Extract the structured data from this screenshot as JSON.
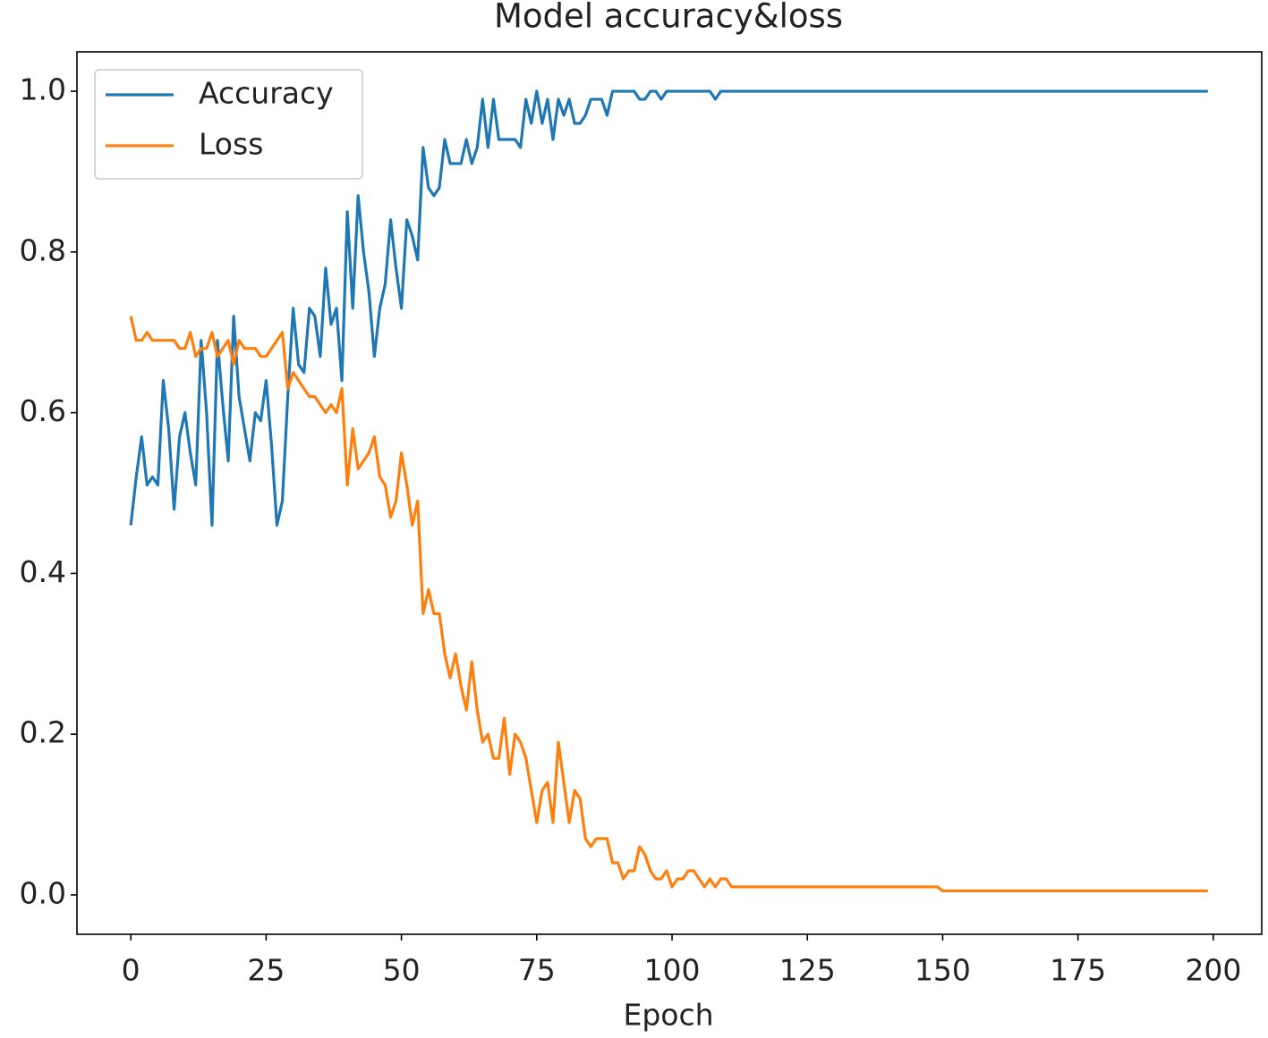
{
  "chart_data": {
    "type": "line",
    "title": "Model accuracy&loss",
    "xlabel": "Epoch",
    "x": [
      0,
      1,
      2,
      3,
      4,
      5,
      6,
      7,
      8,
      9,
      10,
      11,
      12,
      13,
      14,
      15,
      16,
      17,
      18,
      19,
      20,
      21,
      22,
      23,
      24,
      25,
      26,
      27,
      28,
      29,
      30,
      31,
      32,
      33,
      34,
      35,
      36,
      37,
      38,
      39,
      40,
      41,
      42,
      43,
      44,
      45,
      46,
      47,
      48,
      49,
      50,
      51,
      52,
      53,
      54,
      55,
      56,
      57,
      58,
      59,
      60,
      61,
      62,
      63,
      64,
      65,
      66,
      67,
      68,
      69,
      70,
      71,
      72,
      73,
      74,
      75,
      76,
      77,
      78,
      79,
      80,
      81,
      82,
      83,
      84,
      85,
      86,
      87,
      88,
      89,
      90,
      91,
      92,
      93,
      94,
      95,
      96,
      97,
      98,
      99,
      100,
      101,
      102,
      103,
      104,
      105,
      106,
      107,
      108,
      109,
      110,
      111,
      112,
      113,
      114,
      115,
      116,
      117,
      118,
      119,
      120,
      121,
      122,
      123,
      124,
      125,
      126,
      127,
      128,
      129,
      130,
      131,
      132,
      133,
      134,
      135,
      136,
      137,
      138,
      139,
      140,
      141,
      142,
      143,
      144,
      145,
      146,
      147,
      148,
      149,
      150,
      151,
      152,
      153,
      154,
      155,
      156,
      157,
      158,
      159,
      160,
      161,
      162,
      163,
      164,
      165,
      166,
      167,
      168,
      169,
      170,
      171,
      172,
      173,
      174,
      175,
      176,
      177,
      178,
      179,
      180,
      181,
      182,
      183,
      184,
      185,
      186,
      187,
      188,
      189,
      190,
      191,
      192,
      193,
      194,
      195,
      196,
      197,
      198,
      199
    ],
    "series": [
      {
        "name": "Accuracy",
        "color": "#1f77b4",
        "values": [
          0.46,
          0.52,
          0.57,
          0.51,
          0.52,
          0.51,
          0.64,
          0.58,
          0.48,
          0.57,
          0.6,
          0.55,
          0.51,
          0.69,
          0.6,
          0.46,
          0.69,
          0.61,
          0.54,
          0.72,
          0.62,
          0.58,
          0.54,
          0.6,
          0.59,
          0.64,
          0.56,
          0.46,
          0.49,
          0.62,
          0.73,
          0.66,
          0.65,
          0.73,
          0.72,
          0.67,
          0.78,
          0.71,
          0.73,
          0.64,
          0.85,
          0.73,
          0.87,
          0.8,
          0.75,
          0.67,
          0.73,
          0.76,
          0.84,
          0.78,
          0.73,
          0.84,
          0.82,
          0.79,
          0.93,
          0.88,
          0.87,
          0.88,
          0.94,
          0.91,
          0.91,
          0.91,
          0.94,
          0.91,
          0.93,
          0.99,
          0.93,
          0.99,
          0.94,
          0.94,
          0.94,
          0.94,
          0.93,
          0.99,
          0.96,
          1.0,
          0.96,
          0.99,
          0.94,
          0.99,
          0.97,
          0.99,
          0.96,
          0.96,
          0.97,
          0.99,
          0.99,
          0.99,
          0.97,
          1.0,
          1,
          1,
          1,
          1,
          0.99,
          0.99,
          1,
          1,
          0.99,
          1,
          1,
          1,
          1,
          1,
          1,
          1,
          1,
          1,
          0.99,
          1,
          1,
          1,
          1,
          1,
          1,
          1,
          1,
          1,
          1,
          1,
          1,
          1,
          1,
          1,
          1,
          1,
          1,
          1,
          1,
          1,
          1,
          1,
          1,
          1,
          1,
          1,
          1,
          1,
          1,
          1,
          1,
          1,
          1,
          1,
          1,
          1,
          1,
          1,
          1,
          1,
          1,
          1,
          1,
          1,
          1,
          1,
          1,
          1,
          1,
          1,
          1,
          1,
          1,
          1,
          1,
          1,
          1,
          1,
          1,
          1,
          1,
          1,
          1,
          1,
          1,
          1,
          1,
          1,
          1,
          1,
          1,
          1,
          1,
          1,
          1,
          1,
          1,
          1,
          1,
          1,
          1,
          1,
          1,
          1,
          1,
          1,
          1,
          1,
          1,
          1
        ]
      },
      {
        "name": "Loss",
        "color": "#ff7f0e",
        "values": [
          0.72,
          0.69,
          0.69,
          0.7,
          0.69,
          0.69,
          0.69,
          0.69,
          0.69,
          0.68,
          0.68,
          0.7,
          0.67,
          0.68,
          0.68,
          0.7,
          0.67,
          0.68,
          0.69,
          0.66,
          0.69,
          0.68,
          0.68,
          0.68,
          0.67,
          0.67,
          0.68,
          0.69,
          0.7,
          0.63,
          0.65,
          0.64,
          0.63,
          0.62,
          0.62,
          0.61,
          0.6,
          0.61,
          0.6,
          0.63,
          0.51,
          0.58,
          0.53,
          0.54,
          0.55,
          0.57,
          0.52,
          0.51,
          0.47,
          0.49,
          0.55,
          0.51,
          0.46,
          0.49,
          0.35,
          0.38,
          0.35,
          0.35,
          0.3,
          0.27,
          0.3,
          0.26,
          0.23,
          0.29,
          0.23,
          0.19,
          0.2,
          0.17,
          0.17,
          0.22,
          0.15,
          0.2,
          0.19,
          0.17,
          0.13,
          0.09,
          0.13,
          0.14,
          0.09,
          0.19,
          0.14,
          0.09,
          0.13,
          0.12,
          0.07,
          0.06,
          0.07,
          0.07,
          0.07,
          0.04,
          0.04,
          0.02,
          0.03,
          0.03,
          0.06,
          0.05,
          0.03,
          0.02,
          0.02,
          0.03,
          0.01,
          0.02,
          0.02,
          0.03,
          0.03,
          0.02,
          0.01,
          0.02,
          0.01,
          0.02,
          0.02,
          0.01,
          0.01,
          0.01,
          0.01,
          0.01,
          0.01,
          0.01,
          0.01,
          0.01,
          0.01,
          0.01,
          0.01,
          0.01,
          0.01,
          0.01,
          0.01,
          0.01,
          0.01,
          0.01,
          0.01,
          0.01,
          0.01,
          0.01,
          0.01,
          0.01,
          0.01,
          0.01,
          0.01,
          0.01,
          0.01,
          0.01,
          0.01,
          0.01,
          0.01,
          0.01,
          0.01,
          0.01,
          0.01,
          0.01,
          0.005,
          0.005,
          0.005,
          0.005,
          0.005,
          0.005,
          0.005,
          0.005,
          0.005,
          0.005,
          0.005,
          0.005,
          0.005,
          0.005,
          0.005,
          0.005,
          0.005,
          0.005,
          0.005,
          0.005,
          0.005,
          0.005,
          0.005,
          0.005,
          0.005,
          0.005,
          0.005,
          0.005,
          0.005,
          0.005,
          0.005,
          0.005,
          0.005,
          0.005,
          0.005,
          0.005,
          0.005,
          0.005,
          0.005,
          0.005,
          0.005,
          0.005,
          0.005,
          0.005,
          0.005,
          0.005,
          0.005,
          0.005,
          0.005,
          0.005
        ]
      }
    ],
    "xlim": [
      -9.95,
      208.95
    ],
    "xticks": [
      0,
      25,
      50,
      75,
      100,
      125,
      150,
      175,
      200
    ],
    "ylim": [
      -0.049,
      1.049
    ],
    "yticks": [
      {
        "value": 0,
        "label": "0.0"
      },
      0.2,
      0.4,
      0.6,
      0.8,
      {
        "value": 1,
        "label": "1.0"
      }
    ],
    "legend": "upper left"
  }
}
